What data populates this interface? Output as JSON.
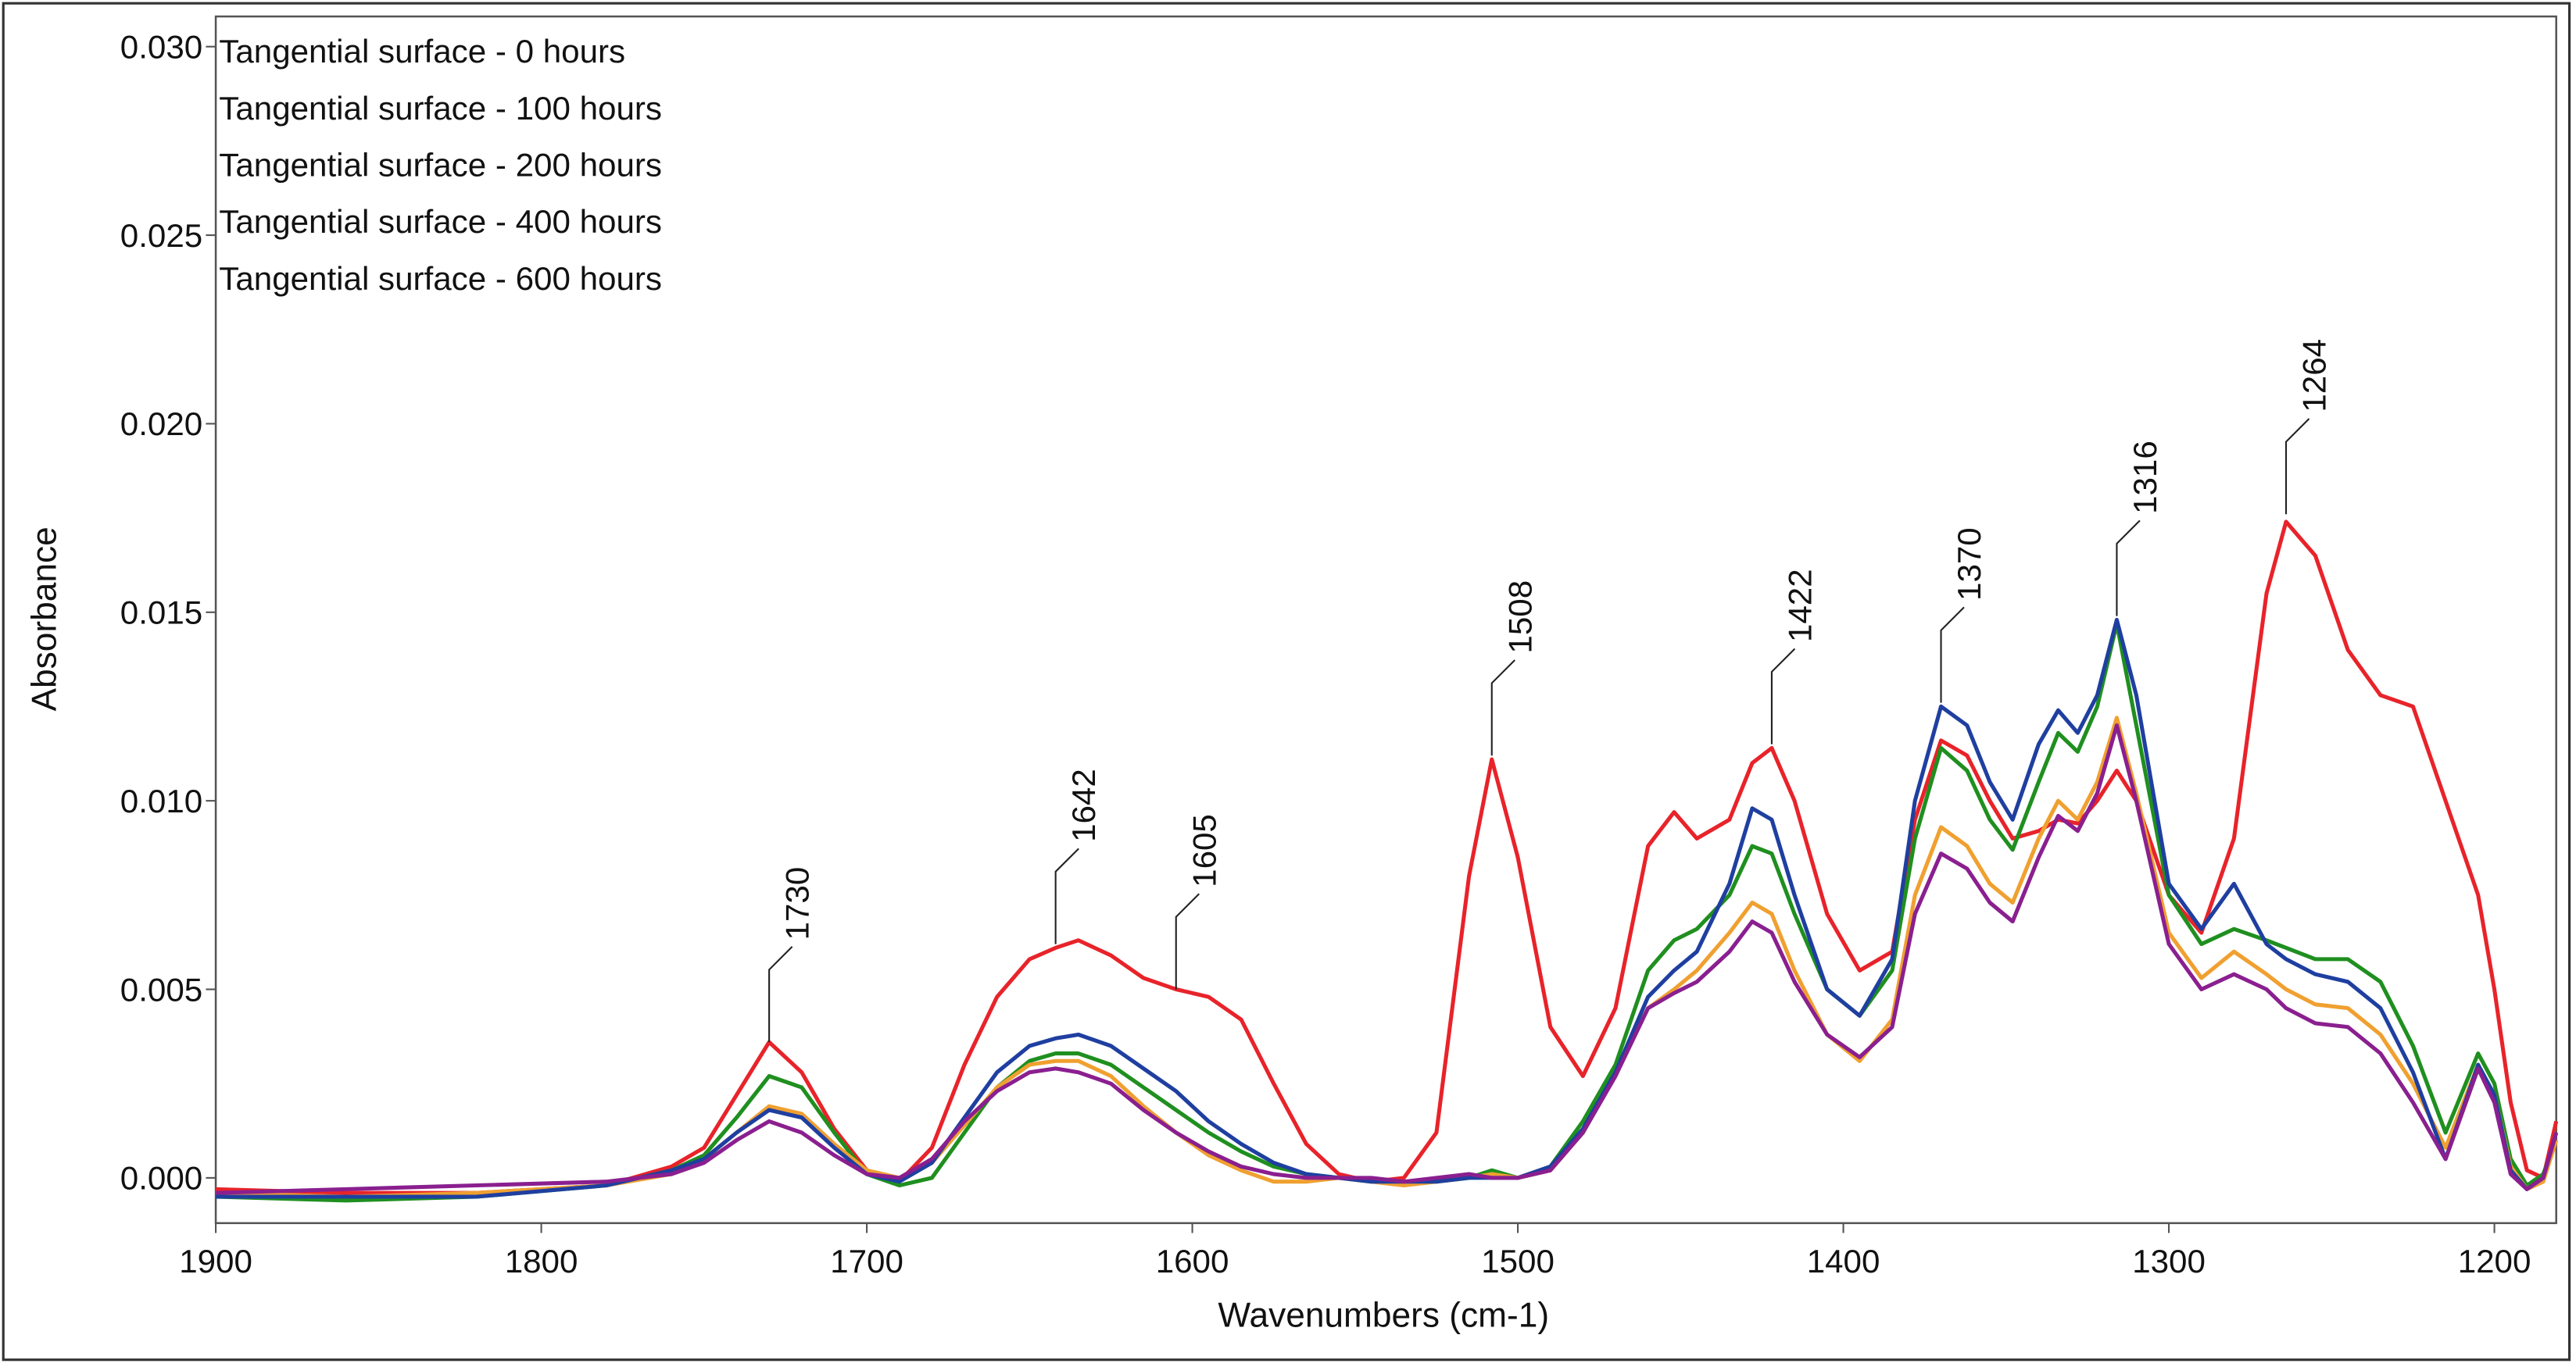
{
  "chart_data": {
    "type": "line",
    "xlabel": "Wavenumbers (cm-1)",
    "ylabel": "Absorbance",
    "xlim": [
      1900,
      1181
    ],
    "ylim": [
      -0.0012,
      0.0308
    ],
    "xticks": [
      1900,
      1800,
      1700,
      1600,
      1500,
      1400,
      1300,
      1200
    ],
    "yticks": [
      {
        "value": 0,
        "label": "0.000"
      },
      {
        "value": 0.005,
        "label": "0.005"
      },
      {
        "value": 0.01,
        "label": "0.010"
      },
      {
        "value": 0.015,
        "label": "0.015"
      },
      {
        "value": 0.02,
        "label": "0.020"
      },
      {
        "value": 0.025,
        "label": "0.025"
      },
      {
        "value": 0.03,
        "label": "0.030"
      }
    ],
    "legend": "upper left",
    "x": [
      1900,
      1860,
      1820,
      1780,
      1760,
      1750,
      1740,
      1730,
      1720,
      1710,
      1700,
      1690,
      1680,
      1670,
      1660,
      1650,
      1642,
      1635,
      1625,
      1615,
      1605,
      1595,
      1585,
      1575,
      1565,
      1555,
      1545,
      1535,
      1525,
      1515,
      1508,
      1500,
      1490,
      1480,
      1470,
      1460,
      1452,
      1445,
      1435,
      1428,
      1422,
      1415,
      1405,
      1395,
      1385,
      1378,
      1370,
      1362,
      1355,
      1348,
      1340,
      1334,
      1328,
      1322,
      1316,
      1310,
      1300,
      1290,
      1280,
      1270,
      1264,
      1255,
      1245,
      1235,
      1225,
      1215,
      1205,
      1200,
      1195,
      1190,
      1185,
      1181
    ],
    "series": [
      {
        "name": "Tangential surface - 0 hours",
        "color": "#e8232a",
        "values": [
          -0.0003,
          -0.0004,
          -0.0004,
          -0.0002,
          0.0003,
          0.0008,
          0.0022,
          0.0036,
          0.0028,
          0.0013,
          0.0002,
          -0.0001,
          0.0008,
          0.003,
          0.0048,
          0.0058,
          0.0061,
          0.0063,
          0.0059,
          0.0053,
          0.005,
          0.0048,
          0.0042,
          0.0025,
          0.0009,
          0.0001,
          -0.0001,
          0,
          0.0012,
          0.008,
          0.0111,
          0.0085,
          0.004,
          0.0027,
          0.0045,
          0.0088,
          0.0097,
          0.009,
          0.0095,
          0.011,
          0.0114,
          0.01,
          0.007,
          0.0055,
          0.006,
          0.0095,
          0.0116,
          0.0112,
          0.01,
          0.009,
          0.0092,
          0.0095,
          0.0094,
          0.01,
          0.0108,
          0.01,
          0.0075,
          0.0065,
          0.009,
          0.0155,
          0.0174,
          0.0165,
          0.014,
          0.0128,
          0.0125,
          0.01,
          0.0075,
          0.005,
          0.002,
          0.0002,
          0,
          0.0015
        ]
      },
      {
        "name": "Tangential surface - 100 hours",
        "color": "#1f8f1f",
        "values": [
          -0.0005,
          -0.0006,
          -0.0005,
          -0.0002,
          0.0002,
          0.0006,
          0.0016,
          0.0027,
          0.0024,
          0.0012,
          0.0001,
          -0.0002,
          0,
          0.0012,
          0.0024,
          0.0031,
          0.0033,
          0.0033,
          0.003,
          0.0024,
          0.0018,
          0.0012,
          0.0007,
          0.0003,
          0.0001,
          0,
          -0.0001,
          -0.0001,
          -0.0001,
          0,
          0.0002,
          0,
          0.0003,
          0.0015,
          0.003,
          0.0055,
          0.0063,
          0.0066,
          0.0075,
          0.0088,
          0.0086,
          0.007,
          0.005,
          0.0043,
          0.0055,
          0.009,
          0.0114,
          0.0108,
          0.0095,
          0.0087,
          0.0105,
          0.0118,
          0.0113,
          0.0125,
          0.0147,
          0.012,
          0.0075,
          0.0062,
          0.0066,
          0.0063,
          0.0061,
          0.0058,
          0.0058,
          0.0052,
          0.0035,
          0.0012,
          0.0033,
          0.0025,
          0.0005,
          -0.0002,
          0.0001,
          0.001
        ]
      },
      {
        "name": "Tangential surface - 200 hours",
        "color": "#f0a030",
        "values": [
          -0.0004,
          -0.0005,
          -0.0004,
          -0.0002,
          0.0001,
          0.0005,
          0.0012,
          0.0019,
          0.0017,
          0.0009,
          0.0002,
          0,
          0.0004,
          0.0014,
          0.0024,
          0.003,
          0.0031,
          0.0031,
          0.0027,
          0.0019,
          0.0012,
          0.0006,
          0.0002,
          -0.0001,
          -0.0001,
          0,
          -0.0001,
          -0.0002,
          -0.0001,
          0,
          0.0001,
          0,
          0.0002,
          0.0012,
          0.0028,
          0.0045,
          0.005,
          0.0055,
          0.0065,
          0.0073,
          0.007,
          0.0055,
          0.0038,
          0.0031,
          0.0042,
          0.0075,
          0.0093,
          0.0088,
          0.0078,
          0.0073,
          0.009,
          0.01,
          0.0095,
          0.0105,
          0.0122,
          0.0102,
          0.0065,
          0.0053,
          0.006,
          0.0054,
          0.005,
          0.0046,
          0.0045,
          0.0038,
          0.0025,
          0.0008,
          0.003,
          0.0022,
          0.0003,
          -0.0003,
          -0.0001,
          0.001
        ]
      },
      {
        "name": "Tangential surface - 400 hours",
        "color": "#1f3fa0",
        "values": [
          -0.0005,
          -0.0005,
          -0.0005,
          -0.0002,
          0.0002,
          0.0005,
          0.0012,
          0.0018,
          0.0016,
          0.0008,
          0.0001,
          -0.0001,
          0.0004,
          0.0016,
          0.0028,
          0.0035,
          0.0037,
          0.0038,
          0.0035,
          0.0029,
          0.0023,
          0.0015,
          0.0009,
          0.0004,
          0.0001,
          0,
          -0.0001,
          -0.0001,
          -0.0001,
          0,
          0,
          0,
          0.0003,
          0.0013,
          0.0028,
          0.0048,
          0.0055,
          0.006,
          0.0078,
          0.0098,
          0.0095,
          0.0075,
          0.005,
          0.0043,
          0.0058,
          0.01,
          0.0125,
          0.012,
          0.0105,
          0.0095,
          0.0115,
          0.0124,
          0.0118,
          0.0128,
          0.0148,
          0.0128,
          0.0078,
          0.0066,
          0.0078,
          0.0062,
          0.0058,
          0.0054,
          0.0052,
          0.0045,
          0.0028,
          0.0005,
          0.003,
          0.0022,
          0.0002,
          -0.0003,
          0,
          0.0012
        ]
      },
      {
        "name": "Tangential surface - 600 hours",
        "color": "#8a1f8f",
        "values": [
          -0.0004,
          -0.0003,
          -0.0002,
          -0.0001,
          0.0001,
          0.0004,
          0.001,
          0.0015,
          0.0012,
          0.0006,
          0.0001,
          0,
          0.0005,
          0.0015,
          0.0023,
          0.0028,
          0.0029,
          0.0028,
          0.0025,
          0.0018,
          0.0012,
          0.0007,
          0.0003,
          0.0001,
          0,
          0,
          0,
          -0.0001,
          0,
          0.0001,
          0,
          0,
          0.0002,
          0.0012,
          0.0027,
          0.0045,
          0.0049,
          0.0052,
          0.006,
          0.0068,
          0.0065,
          0.0052,
          0.0038,
          0.0032,
          0.004,
          0.007,
          0.0086,
          0.0082,
          0.0073,
          0.0068,
          0.0085,
          0.0096,
          0.0092,
          0.0102,
          0.012,
          0.01,
          0.0062,
          0.005,
          0.0054,
          0.005,
          0.0045,
          0.0041,
          0.004,
          0.0033,
          0.002,
          0.0005,
          0.0029,
          0.002,
          0.0001,
          -0.0003,
          0,
          0.0012
        ]
      }
    ],
    "annotations": [
      {
        "x": 1730,
        "y": 0.0036
      },
      {
        "x": 1642,
        "y": 0.0062
      },
      {
        "x": 1605,
        "y": 0.005
      },
      {
        "x": 1508,
        "y": 0.0112
      },
      {
        "x": 1422,
        "y": 0.0115
      },
      {
        "x": 1370,
        "y": 0.0126
      },
      {
        "x": 1316,
        "y": 0.0149
      },
      {
        "x": 1264,
        "y": 0.0176
      }
    ]
  }
}
